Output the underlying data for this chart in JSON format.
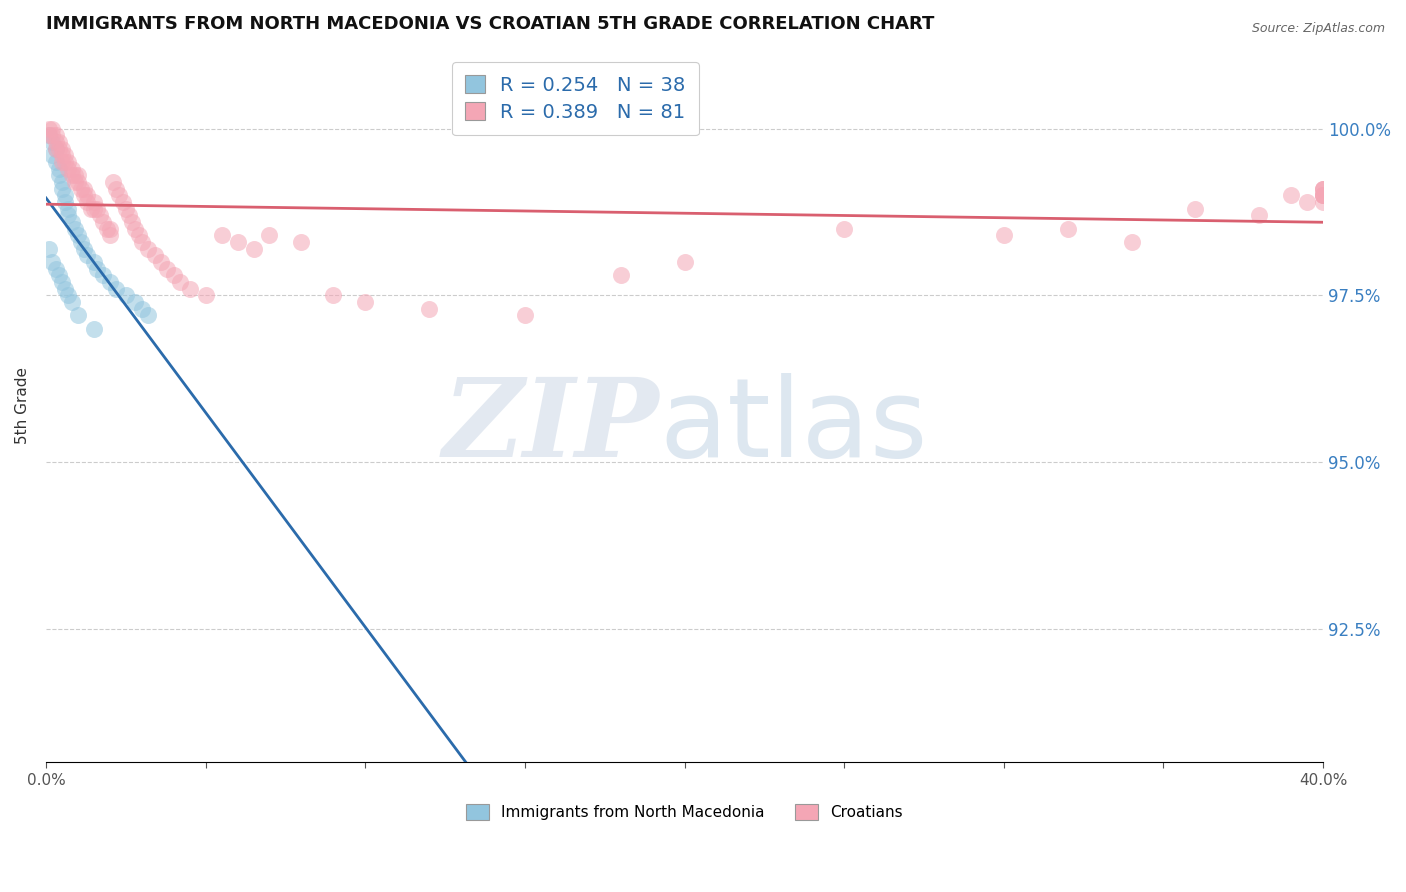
{
  "title": "IMMIGRANTS FROM NORTH MACEDONIA VS CROATIAN 5TH GRADE CORRELATION CHART",
  "source": "Source: ZipAtlas.com",
  "ylabel": "5th Grade",
  "xlim": [
    0.0,
    0.4
  ],
  "ylim": [
    0.905,
    1.012
  ],
  "ytick_values": [
    0.925,
    0.95,
    0.975,
    1.0
  ],
  "ytick_labels": [
    "92.5%",
    "95.0%",
    "97.5%",
    "100.0%"
  ],
  "blue_color": "#92c5de",
  "pink_color": "#f4a6b5",
  "blue_line_color": "#2b6bab",
  "pink_line_color": "#d95f6f",
  "legend_R_blue": "0.254",
  "legend_N_blue": "38",
  "legend_R_pink": "0.389",
  "legend_N_pink": "81",
  "legend_label_blue": "Immigrants from North Macedonia",
  "legend_label_pink": "Croatians",
  "legend_text_color": "#2b6bab",
  "blue_x": [
    0.001,
    0.002,
    0.002,
    0.003,
    0.003,
    0.004,
    0.004,
    0.005,
    0.005,
    0.006,
    0.006,
    0.007,
    0.007,
    0.008,
    0.009,
    0.01,
    0.011,
    0.012,
    0.013,
    0.015,
    0.016,
    0.018,
    0.02,
    0.022,
    0.025,
    0.028,
    0.03,
    0.032,
    0.001,
    0.002,
    0.003,
    0.004,
    0.005,
    0.006,
    0.007,
    0.008,
    0.01,
    0.015
  ],
  "blue_y": [
    0.999,
    0.998,
    0.996,
    0.997,
    0.995,
    0.994,
    0.993,
    0.992,
    0.991,
    0.99,
    0.989,
    0.988,
    0.987,
    0.986,
    0.985,
    0.984,
    0.983,
    0.982,
    0.981,
    0.98,
    0.979,
    0.978,
    0.977,
    0.976,
    0.975,
    0.974,
    0.973,
    0.972,
    0.982,
    0.98,
    0.979,
    0.978,
    0.977,
    0.976,
    0.975,
    0.974,
    0.972,
    0.97
  ],
  "pink_x": [
    0.001,
    0.001,
    0.002,
    0.002,
    0.003,
    0.003,
    0.003,
    0.004,
    0.004,
    0.005,
    0.005,
    0.005,
    0.006,
    0.006,
    0.007,
    0.007,
    0.008,
    0.008,
    0.009,
    0.009,
    0.01,
    0.01,
    0.011,
    0.012,
    0.012,
    0.013,
    0.013,
    0.014,
    0.015,
    0.015,
    0.016,
    0.017,
    0.018,
    0.019,
    0.02,
    0.02,
    0.021,
    0.022,
    0.023,
    0.024,
    0.025,
    0.026,
    0.027,
    0.028,
    0.029,
    0.03,
    0.032,
    0.034,
    0.036,
    0.038,
    0.04,
    0.042,
    0.045,
    0.05,
    0.055,
    0.06,
    0.065,
    0.07,
    0.08,
    0.09,
    0.1,
    0.12,
    0.15,
    0.18,
    0.2,
    0.25,
    0.3,
    0.32,
    0.34,
    0.36,
    0.38,
    0.39,
    0.395,
    0.4,
    0.4,
    0.4,
    0.4,
    0.4,
    0.4,
    0.4,
    0.4
  ],
  "pink_y": [
    1.0,
    0.999,
    1.0,
    0.999,
    0.999,
    0.998,
    0.997,
    0.998,
    0.997,
    0.997,
    0.996,
    0.995,
    0.995,
    0.996,
    0.994,
    0.995,
    0.993,
    0.994,
    0.993,
    0.992,
    0.992,
    0.993,
    0.991,
    0.99,
    0.991,
    0.99,
    0.989,
    0.988,
    0.988,
    0.989,
    0.988,
    0.987,
    0.986,
    0.985,
    0.985,
    0.984,
    0.992,
    0.991,
    0.99,
    0.989,
    0.988,
    0.987,
    0.986,
    0.985,
    0.984,
    0.983,
    0.982,
    0.981,
    0.98,
    0.979,
    0.978,
    0.977,
    0.976,
    0.975,
    0.984,
    0.983,
    0.982,
    0.984,
    0.983,
    0.975,
    0.974,
    0.973,
    0.972,
    0.978,
    0.98,
    0.985,
    0.984,
    0.985,
    0.983,
    0.988,
    0.987,
    0.99,
    0.989,
    0.99,
    0.991,
    0.99,
    0.991,
    0.99,
    0.989,
    0.99,
    0.991
  ]
}
